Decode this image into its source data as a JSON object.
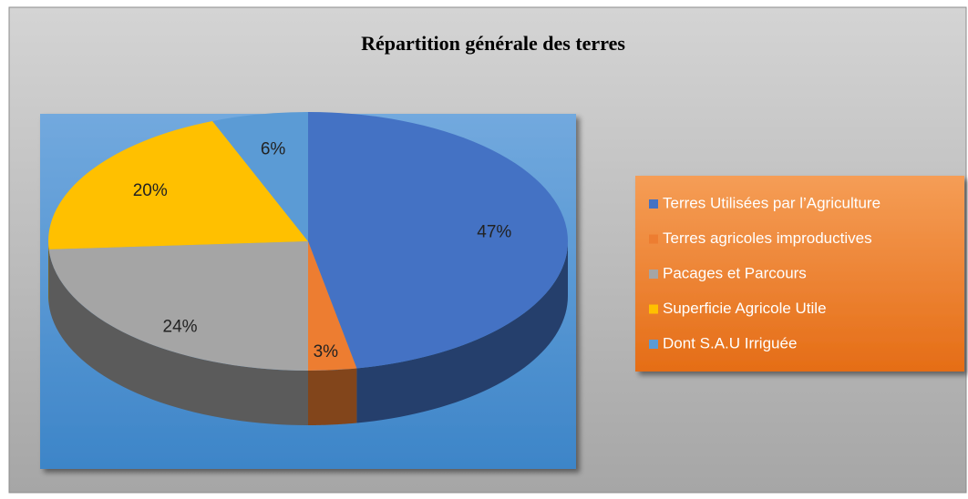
{
  "chart_data": {
    "type": "pie",
    "title": "Répartition générale des terres",
    "categories": [
      "Terres Utilisées par l’Agriculture",
      "Terres agricoles improductives",
      "Pacages et Parcours",
      "Superficie Agricole Utile",
      "Dont S.A.U Irriguée"
    ],
    "values": [
      47,
      3,
      24,
      20,
      6
    ],
    "value_labels": [
      "47%",
      "3%",
      "24%",
      "20%",
      "6%"
    ],
    "colors": [
      "#4472c4",
      "#ed7d31",
      "#a5a5a5",
      "#ffc000",
      "#5b9bd5"
    ]
  }
}
